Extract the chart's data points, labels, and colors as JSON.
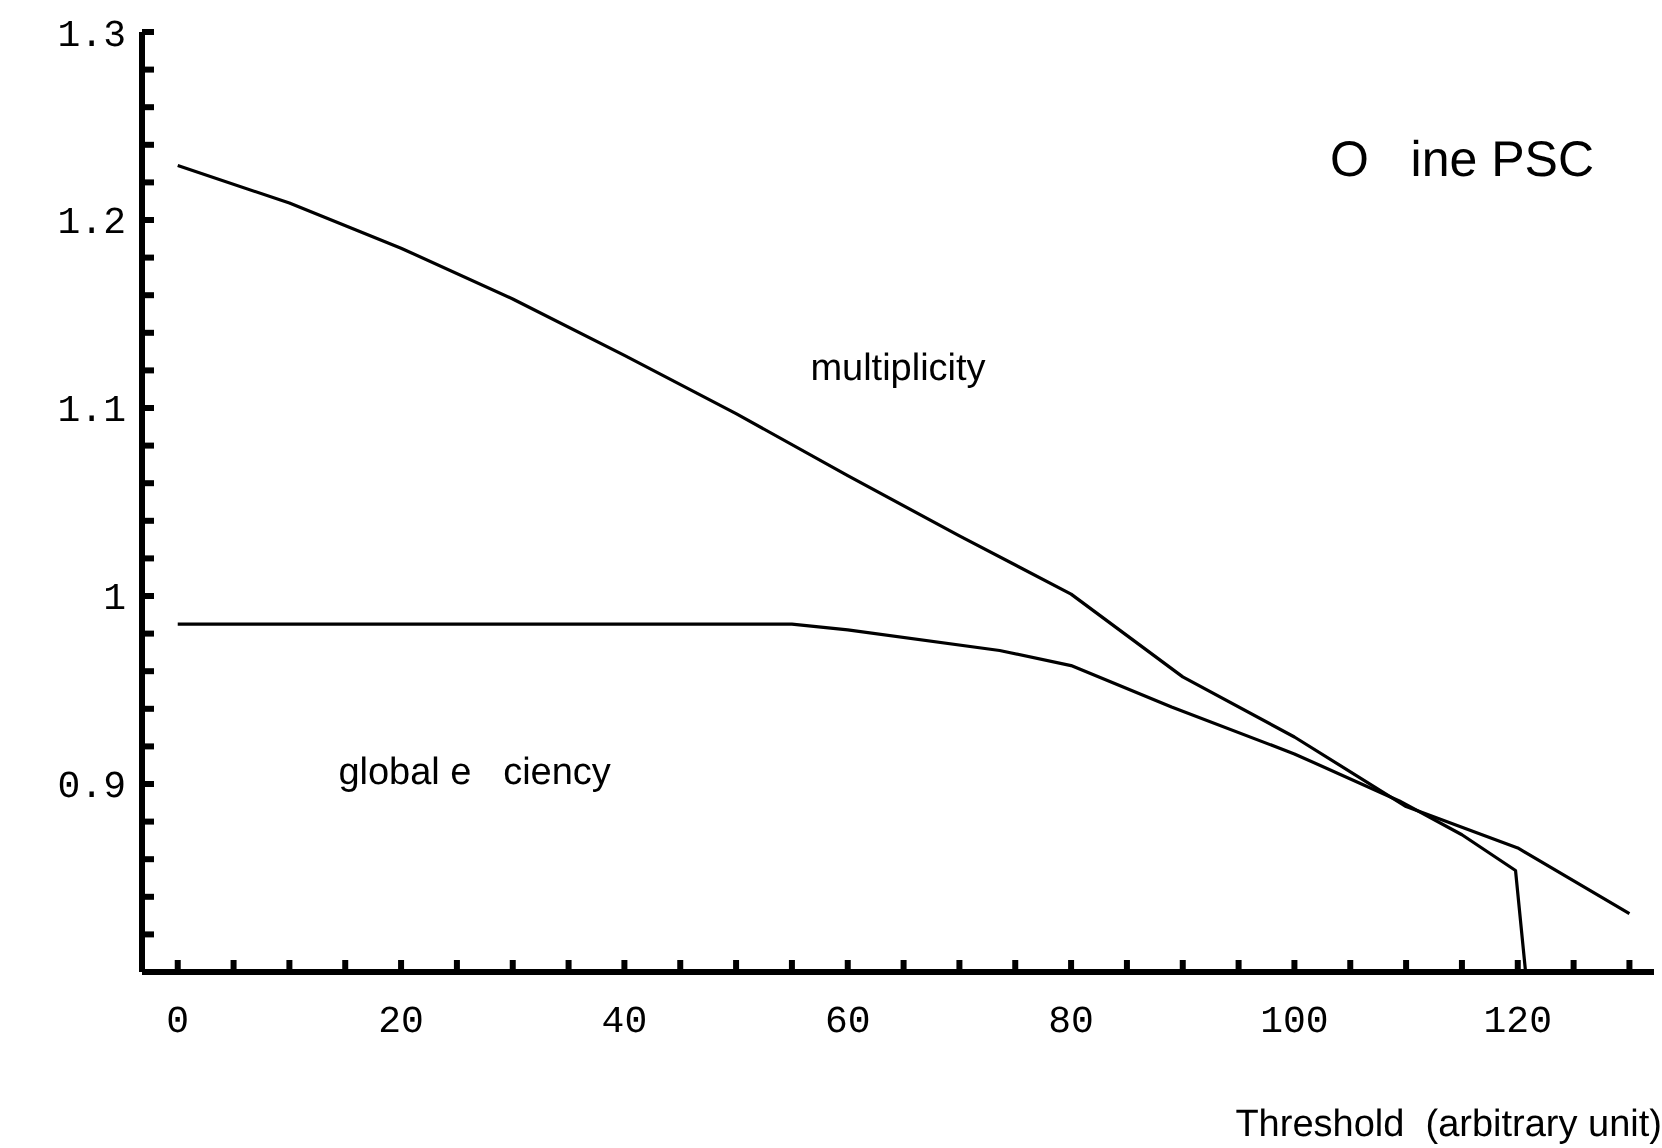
{
  "chart_data": {
    "type": "line",
    "title": "O   ine PSC",
    "xlabel": "Threshold  (arbitrary unit)",
    "xlim": [
      -3.2,
      132.2
    ],
    "ylim": [
      0.8,
      1.3
    ],
    "xticks": [
      0,
      {
        "value": 5,
        "label": null
      },
      {
        "value": 10,
        "label": null
      },
      {
        "value": 15,
        "label": null
      },
      20,
      {
        "value": 25,
        "label": null
      },
      {
        "value": 30,
        "label": null
      },
      {
        "value": 35,
        "label": null
      },
      40,
      {
        "value": 45,
        "label": null
      },
      {
        "value": 50,
        "label": null
      },
      {
        "value": 55,
        "label": null
      },
      60,
      {
        "value": 65,
        "label": null
      },
      {
        "value": 70,
        "label": null
      },
      {
        "value": 75,
        "label": null
      },
      80,
      {
        "value": 85,
        "label": null
      },
      {
        "value": 90,
        "label": null
      },
      {
        "value": 95,
        "label": null
      },
      100,
      {
        "value": 105,
        "label": null
      },
      {
        "value": 110,
        "label": null
      },
      {
        "value": 115,
        "label": null
      },
      120,
      {
        "value": 125,
        "label": null
      },
      {
        "value": 130,
        "label": null
      }
    ],
    "yticks": [
      {
        "value": 0.82,
        "label": null
      },
      {
        "value": 0.84,
        "label": null
      },
      {
        "value": 0.86,
        "label": null
      },
      {
        "value": 0.88,
        "label": null
      },
      0.9,
      {
        "value": 0.92,
        "label": null
      },
      {
        "value": 0.94,
        "label": null
      },
      {
        "value": 0.96,
        "label": null
      },
      {
        "value": 0.98,
        "label": null
      },
      1,
      {
        "value": 1.02,
        "label": null
      },
      {
        "value": 1.04,
        "label": null
      },
      {
        "value": 1.06,
        "label": null
      },
      {
        "value": 1.08,
        "label": null
      },
      1.1,
      {
        "value": 1.12,
        "label": null
      },
      {
        "value": 1.14,
        "label": null
      },
      {
        "value": 1.16,
        "label": null
      },
      {
        "value": 1.18,
        "label": null
      },
      1.2,
      {
        "value": 1.22,
        "label": null
      },
      {
        "value": 1.24,
        "label": null
      },
      {
        "value": 1.26,
        "label": null
      },
      {
        "value": 1.28,
        "label": null
      },
      1.3
    ],
    "marker": "none",
    "line_style": "solid",
    "series": [
      {
        "color": "#000000",
        "x": [
          0,
          10,
          20,
          30,
          40,
          50,
          60,
          70,
          80,
          90,
          100,
          110,
          120,
          130
        ],
        "values": [
          1.229,
          1.209,
          1.185,
          1.158,
          1.128,
          1.097,
          1.064,
          1.032,
          1.001,
          0.957,
          0.925,
          0.888,
          0.866,
          0.831
        ]
      },
      {
        "color": "#000000",
        "x": [
          0,
          55,
          60,
          73.6,
          80,
          89,
          100,
          109.4,
          115,
          119.8,
          120.7
        ],
        "values": [
          0.985,
          0.985,
          0.982,
          0.971,
          0.963,
          0.941,
          0.916,
          0.891,
          0.873,
          0.854,
          0.8
        ]
      }
    ],
    "annotations": [
      "multiplicity",
      "global e   ciency"
    ]
  }
}
